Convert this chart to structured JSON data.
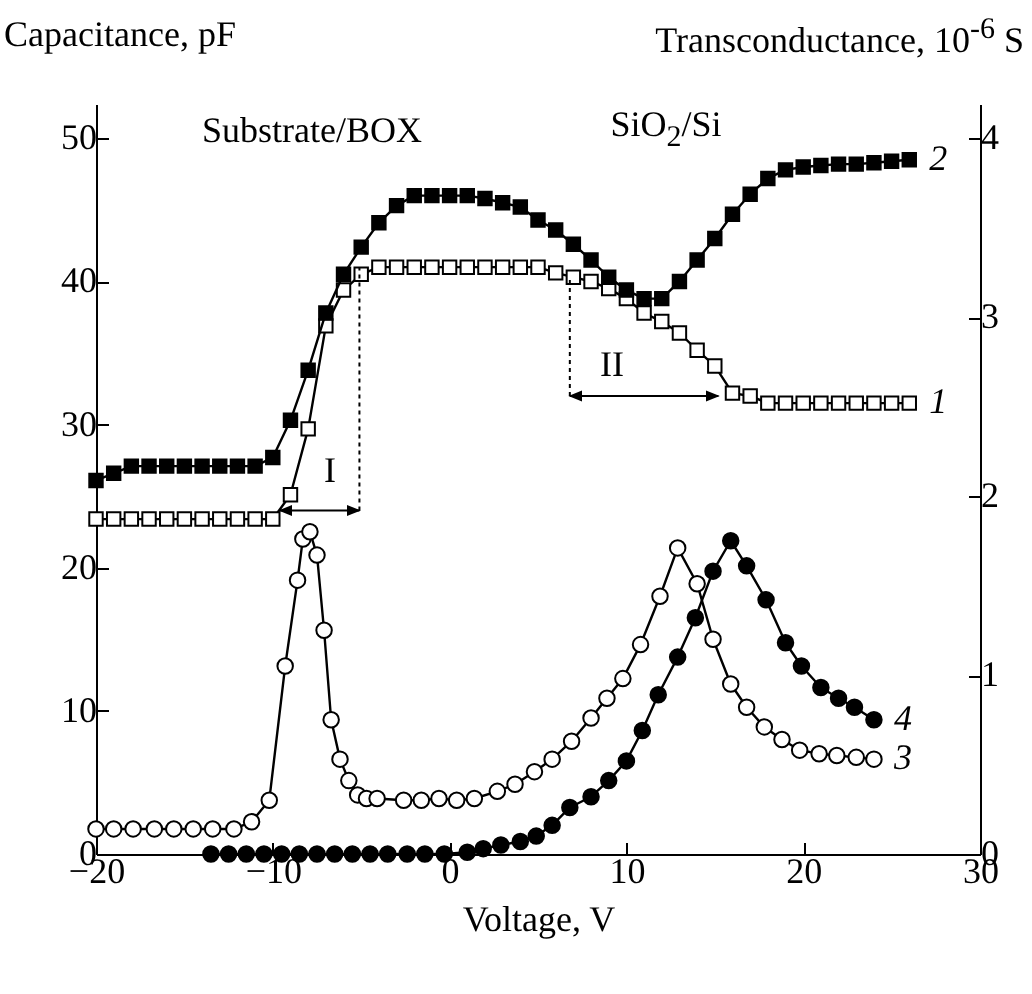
{
  "chart_data": {
    "type": "line",
    "xlabel": "Voltage, V",
    "ylabel": "Capacitance, pF",
    "y2label": "Transconductance, 10$^{-6}$ S",
    "xlim": [
      -20,
      30
    ],
    "xticks": [
      -20,
      -10,
      0,
      10,
      20,
      30
    ],
    "ylim": [
      0,
      52.4
    ],
    "yticks": [
      0,
      10,
      20,
      30,
      40,
      50
    ],
    "y2lim": [
      0,
      4.19
    ],
    "y2ticks": [
      0,
      1,
      2,
      3,
      4
    ],
    "grid": false,
    "line_style": "solid",
    "annotations": [
      "Substrate/BOX",
      "SiO$_{2}$/Si",
      {
        "text": "I",
        "x": -5.1,
        "y": 41.0
      },
      {
        "text": "II",
        "x": 6.8,
        "y": 40.3
      }
    ],
    "series": [
      {
        "name": "1",
        "color": "#000000",
        "marker": "square-open",
        "x": [
          -20,
          -19,
          -18,
          -17,
          -16,
          -15,
          -14,
          -13,
          -12,
          -11,
          -10,
          -9,
          -8,
          -7,
          -6,
          -5,
          -4,
          -3,
          -2,
          -1,
          0,
          1,
          2,
          3,
          4,
          5,
          6,
          7,
          8,
          9,
          10,
          11,
          12,
          13,
          14,
          15,
          16,
          17,
          18,
          19,
          20,
          21,
          22,
          23,
          24,
          25,
          26
        ],
        "values": [
          23.4,
          23.4,
          23.4,
          23.4,
          23.4,
          23.4,
          23.4,
          23.4,
          23.4,
          23.4,
          23.4,
          25.1,
          29.7,
          36.9,
          39.4,
          40.5,
          41.0,
          41.0,
          41.0,
          41.0,
          41.0,
          41.0,
          41.0,
          41.0,
          41.0,
          41.0,
          40.6,
          40.3,
          40.0,
          39.5,
          38.8,
          37.8,
          37.2,
          36.4,
          35.2,
          34.1,
          32.2,
          32.0,
          31.5,
          31.5,
          31.5,
          31.5,
          31.5,
          31.5,
          31.5,
          31.5,
          31.5
        ]
      },
      {
        "name": "2",
        "color": "#000000",
        "marker": "square",
        "x": [
          -20,
          -19,
          -18,
          -17,
          -16,
          -15,
          -14,
          -13,
          -12,
          -11,
          -10,
          -9,
          -8,
          -7,
          -6,
          -5,
          -4,
          -3,
          -2,
          -1,
          0,
          1,
          2,
          3,
          4,
          5,
          6,
          7,
          8,
          9,
          10,
          11,
          12,
          13,
          14,
          15,
          16,
          17,
          18,
          19,
          20,
          21,
          22,
          23,
          24,
          25,
          26
        ],
        "values": [
          26.1,
          26.6,
          27.1,
          27.1,
          27.1,
          27.1,
          27.1,
          27.1,
          27.1,
          27.1,
          27.7,
          30.3,
          33.8,
          37.8,
          40.5,
          42.4,
          44.1,
          45.3,
          46.0,
          46.0,
          46.0,
          46.0,
          45.8,
          45.5,
          45.2,
          44.3,
          43.6,
          42.6,
          41.5,
          40.3,
          39.4,
          38.8,
          38.8,
          40.0,
          41.5,
          43.0,
          44.7,
          46.1,
          47.2,
          47.8,
          48.0,
          48.1,
          48.2,
          48.2,
          48.3,
          48.4,
          48.5
        ]
      },
      {
        "name": "3",
        "color": "#000000",
        "marker": "circle-open",
        "axis": "y2",
        "x": [
          -20,
          -19,
          -17.9,
          -16.7,
          -15.6,
          -14.5,
          -13.4,
          -12.2,
          -11.2,
          -10.2,
          -9.3,
          -8.6,
          -8.3,
          -7.9,
          -7.5,
          -7.1,
          -6.7,
          -6.2,
          -5.7,
          -5.2,
          -4.7,
          -4.1,
          -2.6,
          -1.6,
          -0.6,
          0.4,
          1.4,
          2.7,
          3.7,
          4.8,
          5.8,
          6.9,
          8.0,
          8.9,
          9.8,
          10.8,
          11.9,
          12.9,
          14.0,
          14.9,
          15.9,
          16.8,
          17.8,
          18.8,
          19.8,
          20.9,
          21.9,
          23.0,
          24.0
        ],
        "values": [
          0.14,
          0.14,
          0.14,
          0.14,
          0.14,
          0.14,
          0.14,
          0.14,
          0.18,
          0.3,
          1.05,
          1.53,
          1.76,
          1.8,
          1.67,
          1.25,
          0.75,
          0.53,
          0.41,
          0.33,
          0.31,
          0.31,
          0.3,
          0.3,
          0.31,
          0.3,
          0.31,
          0.35,
          0.39,
          0.46,
          0.53,
          0.63,
          0.76,
          0.87,
          0.98,
          1.17,
          1.44,
          1.71,
          1.51,
          1.2,
          0.95,
          0.82,
          0.71,
          0.64,
          0.58,
          0.56,
          0.55,
          0.54,
          0.53
        ]
      },
      {
        "name": "4",
        "color": "#000000",
        "marker": "circle",
        "axis": "y2",
        "x": [
          -13.5,
          -12.5,
          -11.5,
          -10.5,
          -9.5,
          -8.5,
          -7.5,
          -6.5,
          -5.5,
          -4.5,
          -3.5,
          -2.4,
          -1.4,
          -0.3,
          1.0,
          1.9,
          2.9,
          4.0,
          4.9,
          5.8,
          6.8,
          8.0,
          9.0,
          10.0,
          10.9,
          11.8,
          12.9,
          13.9,
          14.9,
          15.9,
          16.8,
          17.9,
          19.0,
          19.9,
          21.0,
          22.0,
          22.9,
          24.0
        ],
        "values": [
          0,
          0,
          0,
          0,
          0,
          0,
          0,
          0,
          0,
          0,
          0,
          0,
          0,
          0,
          0.01,
          0.03,
          0.05,
          0.07,
          0.1,
          0.16,
          0.26,
          0.32,
          0.41,
          0.52,
          0.69,
          0.89,
          1.1,
          1.32,
          1.58,
          1.75,
          1.61,
          1.42,
          1.18,
          1.05,
          0.93,
          0.87,
          0.82,
          0.75
        ]
      }
    ]
  }
}
